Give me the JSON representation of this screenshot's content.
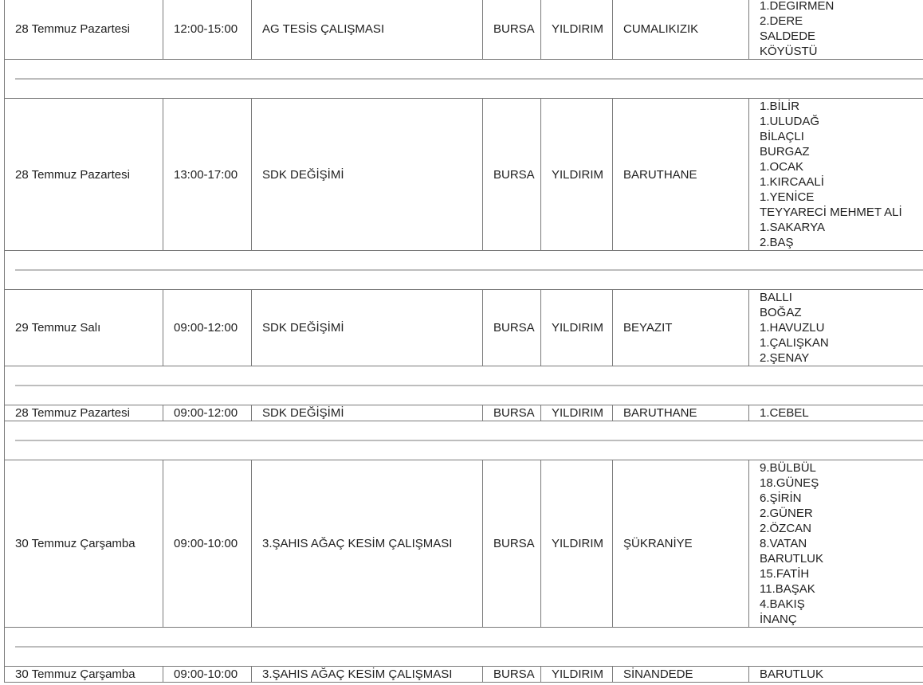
{
  "rows": [
    {
      "date": "28 Temmuz Pazartesi",
      "time": "12:00-15:00",
      "work": "AG TESİS ÇALIŞMASI",
      "city": "BURSA",
      "district": "YILDIRIM",
      "neighborhood": "CUMALIKIZIK",
      "streets": [
        "1.DEGIRMEN",
        "2.DERE",
        "SALDEDE",
        "KÖYÜSTÜ"
      ]
    },
    {
      "date": "28 Temmuz Pazartesi",
      "time": "13:00-17:00",
      "work": "SDK DEĞİŞİMİ",
      "city": "BURSA",
      "district": "YILDIRIM",
      "neighborhood": "BARUTHANE",
      "streets": [
        "1.BİLİR",
        "1.ULUDAĞ",
        "BİLAÇLI",
        "BURGAZ",
        "1.OCAK",
        "1.KIRCAALİ",
        "1.YENİCE",
        "TEYYARECİ MEHMET ALİ",
        "1.SAKARYA",
        "2.BAŞ"
      ]
    },
    {
      "date": "29 Temmuz Salı",
      "time": "09:00-12:00",
      "work": "SDK DEĞİŞİMİ",
      "city": "BURSA",
      "district": "YILDIRIM",
      "neighborhood": "BEYAZIT",
      "streets": [
        "BALLI",
        "BOĞAZ",
        "1.HAVUZLU",
        "1.ÇALIŞKAN",
        "2.ŞENAY"
      ]
    },
    {
      "date": "28 Temmuz Pazartesi",
      "time": "09:00-12:00",
      "work": "SDK DEĞİŞİMİ",
      "city": "BURSA",
      "district": "YILDIRIM",
      "neighborhood": "BARUTHANE",
      "streets": [
        "1.CEBEL"
      ]
    },
    {
      "date": "30 Temmuz Çarşamba",
      "time": "09:00-10:00",
      "work": "3.ŞAHIS AĞAÇ KESİM ÇALIŞMASI",
      "city": "BURSA",
      "district": "YILDIRIM",
      "neighborhood": "ŞÜKRANİYE",
      "streets": [
        "9.BÜLBÜL",
        "18.GÜNEŞ",
        "6.ŞİRİN",
        "2.GÜNER",
        "2.ÖZCAN",
        "8.VATAN",
        "BARUTLUK",
        "15.FATİH",
        "11.BAŞAK",
        "4.BAKIŞ",
        "İNANÇ"
      ]
    },
    {
      "date": "30 Temmuz Çarşamba",
      "time": "09:00-10:00",
      "work": "3.ŞAHIS AĞAÇ KESİM ÇALIŞMASI",
      "city": "BURSA",
      "district": "YILDIRIM",
      "neighborhood": "SİNANDEDE",
      "streets": [
        "BARUTLUK"
      ]
    }
  ]
}
